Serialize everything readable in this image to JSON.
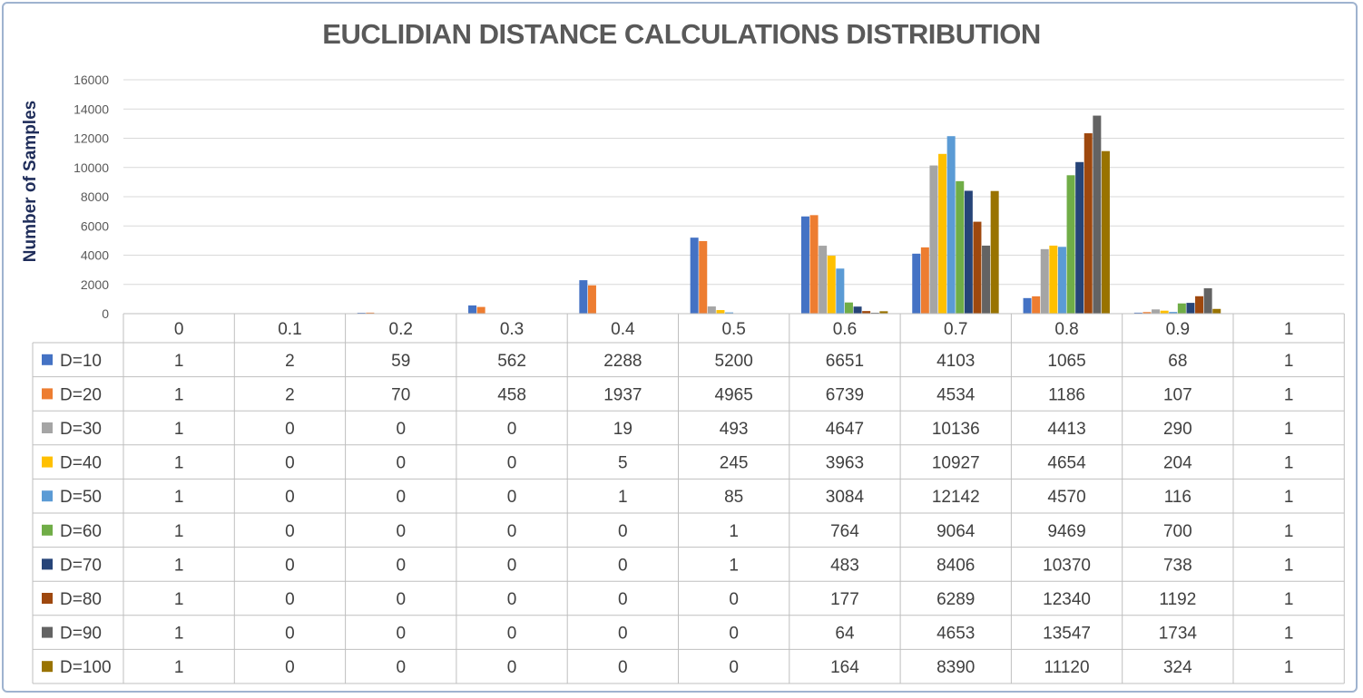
{
  "chart_data": {
    "type": "bar",
    "title": "EUCLIDIAN DISTANCE CALCULATIONS DISTRIBUTION",
    "ylabel": "Number of Samples",
    "xlabel": "",
    "ylim": [
      0,
      16000
    ],
    "yticks": [
      0,
      2000,
      4000,
      6000,
      8000,
      10000,
      12000,
      14000,
      16000
    ],
    "grid": true,
    "legend": "data-table",
    "categories": [
      "0",
      "0.1",
      "0.2",
      "0.3",
      "0.4",
      "0.5",
      "0.6",
      "0.7",
      "0.8",
      "0.9",
      "1"
    ],
    "series": [
      {
        "name": "D=10",
        "color": "#4472c4",
        "values": [
          1,
          2,
          59,
          562,
          2288,
          5200,
          6651,
          4103,
          1065,
          68,
          1
        ]
      },
      {
        "name": "D=20",
        "color": "#ed7d31",
        "values": [
          1,
          2,
          70,
          458,
          1937,
          4965,
          6739,
          4534,
          1186,
          107,
          1
        ]
      },
      {
        "name": "D=30",
        "color": "#a5a5a5",
        "values": [
          1,
          0,
          0,
          0,
          19,
          493,
          4647,
          10136,
          4413,
          290,
          1
        ]
      },
      {
        "name": "D=40",
        "color": "#ffc000",
        "values": [
          1,
          0,
          0,
          0,
          5,
          245,
          3963,
          10927,
          4654,
          204,
          1
        ]
      },
      {
        "name": "D=50",
        "color": "#5b9bd5",
        "values": [
          1,
          0,
          0,
          0,
          1,
          85,
          3084,
          12142,
          4570,
          116,
          1
        ]
      },
      {
        "name": "D=60",
        "color": "#70ad47",
        "values": [
          1,
          0,
          0,
          0,
          0,
          1,
          764,
          9064,
          9469,
          700,
          1
        ]
      },
      {
        "name": "D=70",
        "color": "#264478",
        "values": [
          1,
          0,
          0,
          0,
          0,
          1,
          483,
          8406,
          10370,
          738,
          1
        ]
      },
      {
        "name": "D=80",
        "color": "#9e480e",
        "values": [
          1,
          0,
          0,
          0,
          0,
          0,
          177,
          6289,
          12340,
          1192,
          1
        ]
      },
      {
        "name": "D=90",
        "color": "#636363",
        "values": [
          1,
          0,
          0,
          0,
          0,
          0,
          64,
          4653,
          13547,
          1734,
          1
        ]
      },
      {
        "name": "D=100",
        "color": "#997300",
        "values": [
          1,
          0,
          0,
          0,
          0,
          0,
          164,
          8390,
          11120,
          324,
          1
        ]
      }
    ]
  }
}
